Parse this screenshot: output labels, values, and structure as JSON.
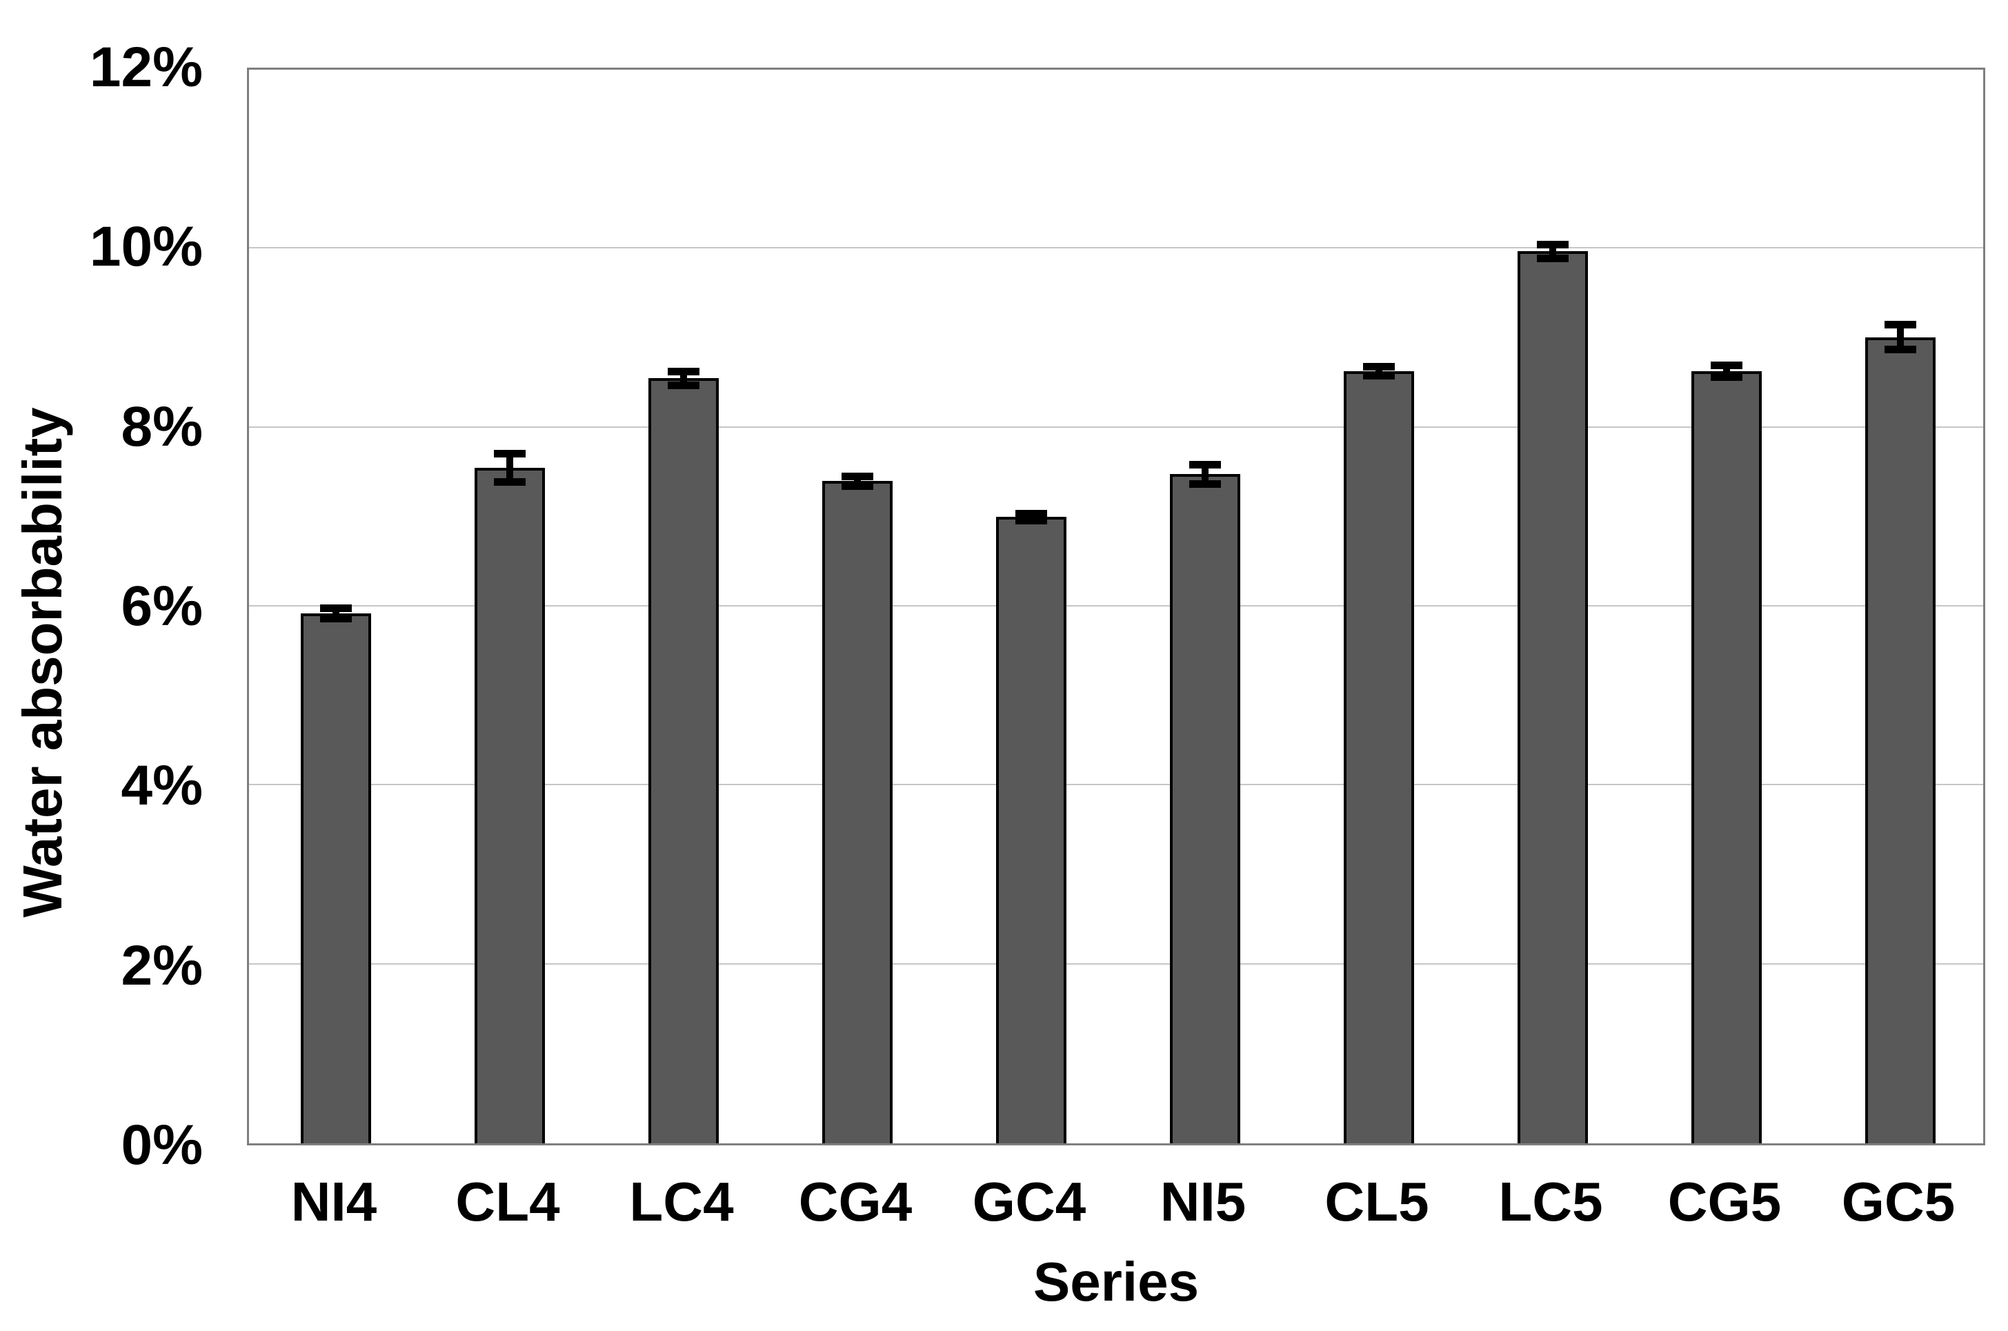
{
  "chart_data": {
    "type": "bar",
    "title": "",
    "xlabel": "Series",
    "ylabel": "Water absorbability",
    "categories": [
      "NI4",
      "CL4",
      "LC4",
      "CG4",
      "GC4",
      "NI5",
      "CL5",
      "LC5",
      "CG5",
      "GC5"
    ],
    "values": [
      5.92,
      7.55,
      8.55,
      7.4,
      7.0,
      7.48,
      8.63,
      9.97,
      8.63,
      9.01
    ],
    "error_bars": [
      0.1,
      0.2,
      0.12,
      0.1,
      0.08,
      0.15,
      0.09,
      0.12,
      0.11,
      0.18
    ],
    "value_unit": "%",
    "ylim": [
      0,
      12
    ],
    "ytick_step": 2,
    "ytick_labels": [
      "0%",
      "2%",
      "4%",
      "6%",
      "8%",
      "10%",
      "12%"
    ],
    "grid": true,
    "legend": "none",
    "bar_color": "#595959",
    "bar_border_color": "#000000",
    "error_bar_color": "#000000",
    "gridline_color": "#c6c6c6",
    "plot_border_color": "#7f7f7f",
    "text_color": "#000000",
    "background_color": "#ffffff"
  }
}
